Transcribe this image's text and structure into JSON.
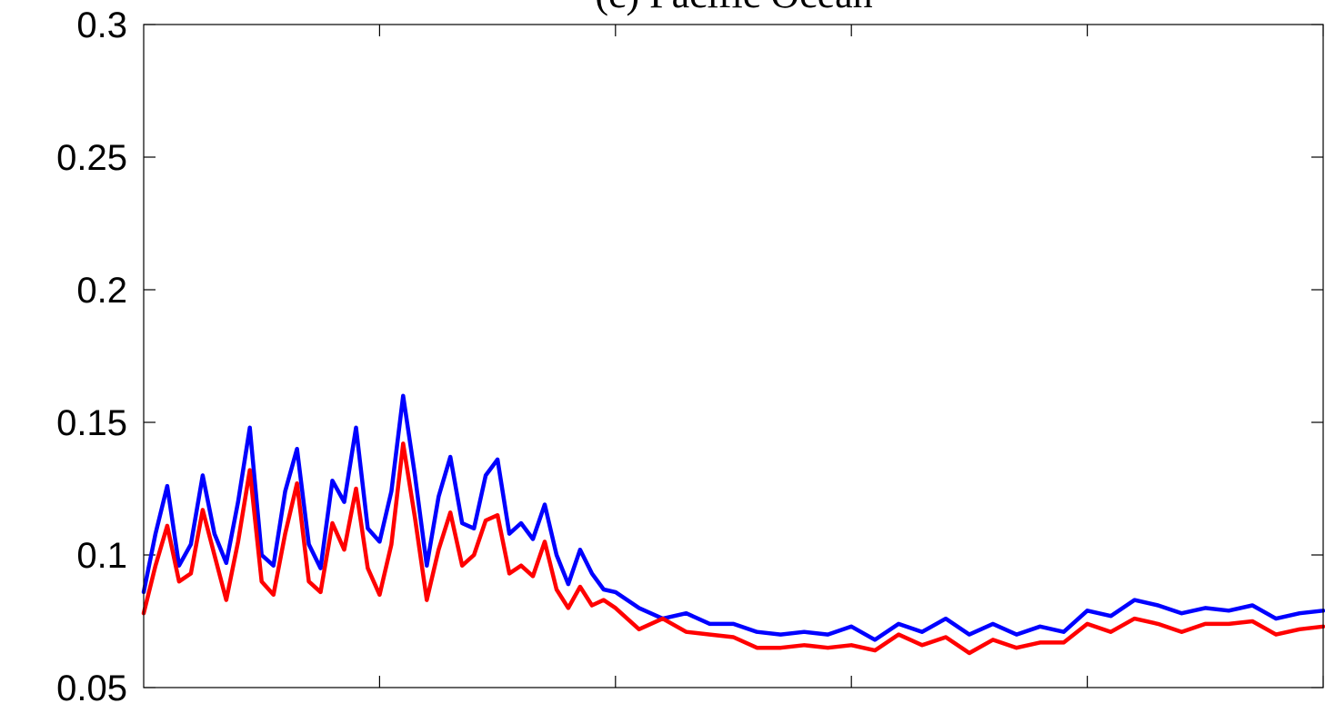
{
  "chart_data": {
    "type": "line",
    "title": "(c) Pacific Ocean",
    "xlabel": "",
    "ylabel": "",
    "xlim": [
      0,
      1
    ],
    "ylim": [
      0.05,
      0.3
    ],
    "yticks": [
      0.05,
      0.1,
      0.15,
      0.2,
      0.25,
      0.3
    ],
    "ytick_labels": [
      "0.05",
      "0.1",
      "0.15",
      "0.2",
      "0.25",
      "0.3"
    ],
    "xticks": [
      0.2,
      0.4,
      0.6,
      0.8,
      1.0
    ],
    "grid": false,
    "legend": "none",
    "series": [
      {
        "color": "#0000ff",
        "x": [
          0,
          0.01,
          0.02,
          0.03,
          0.04,
          0.05,
          0.06,
          0.07,
          0.08,
          0.09,
          0.1,
          0.11,
          0.12,
          0.13,
          0.14,
          0.15,
          0.16,
          0.17,
          0.18,
          0.19,
          0.2,
          0.21,
          0.22,
          0.23,
          0.24,
          0.25,
          0.26,
          0.27,
          0.28,
          0.29,
          0.3,
          0.31,
          0.32,
          0.33,
          0.34,
          0.35,
          0.36,
          0.37,
          0.38,
          0.39,
          0.4,
          0.42,
          0.44,
          0.46,
          0.48,
          0.5,
          0.52,
          0.54,
          0.56,
          0.58,
          0.6,
          0.62,
          0.64,
          0.66,
          0.68,
          0.7,
          0.72,
          0.74,
          0.76,
          0.78,
          0.8,
          0.82,
          0.84,
          0.86,
          0.88,
          0.9,
          0.92,
          0.94,
          0.96,
          0.98,
          1.0
        ],
        "y": [
          0.086,
          0.108,
          0.126,
          0.096,
          0.104,
          0.13,
          0.108,
          0.097,
          0.12,
          0.148,
          0.1,
          0.096,
          0.124,
          0.14,
          0.104,
          0.095,
          0.128,
          0.12,
          0.148,
          0.11,
          0.105,
          0.124,
          0.16,
          0.13,
          0.096,
          0.122,
          0.137,
          0.112,
          0.11,
          0.13,
          0.136,
          0.108,
          0.112,
          0.106,
          0.119,
          0.1,
          0.089,
          0.102,
          0.093,
          0.087,
          0.086,
          0.08,
          0.076,
          0.078,
          0.074,
          0.074,
          0.071,
          0.07,
          0.071,
          0.07,
          0.073,
          0.068,
          0.074,
          0.071,
          0.076,
          0.07,
          0.074,
          0.07,
          0.073,
          0.071,
          0.079,
          0.077,
          0.083,
          0.081,
          0.078,
          0.08,
          0.079,
          0.081,
          0.076,
          0.078,
          0.079
        ]
      },
      {
        "color": "#ff0000",
        "x": [
          0,
          0.01,
          0.02,
          0.03,
          0.04,
          0.05,
          0.06,
          0.07,
          0.08,
          0.09,
          0.1,
          0.11,
          0.12,
          0.13,
          0.14,
          0.15,
          0.16,
          0.17,
          0.18,
          0.19,
          0.2,
          0.21,
          0.22,
          0.23,
          0.24,
          0.25,
          0.26,
          0.27,
          0.28,
          0.29,
          0.3,
          0.31,
          0.32,
          0.33,
          0.34,
          0.35,
          0.36,
          0.37,
          0.38,
          0.39,
          0.4,
          0.42,
          0.44,
          0.46,
          0.48,
          0.5,
          0.52,
          0.54,
          0.56,
          0.58,
          0.6,
          0.62,
          0.64,
          0.66,
          0.68,
          0.7,
          0.72,
          0.74,
          0.76,
          0.78,
          0.8,
          0.82,
          0.84,
          0.86,
          0.88,
          0.9,
          0.92,
          0.94,
          0.96,
          0.98,
          1.0
        ],
        "y": [
          0.078,
          0.096,
          0.111,
          0.09,
          0.093,
          0.117,
          0.1,
          0.083,
          0.105,
          0.132,
          0.09,
          0.085,
          0.108,
          0.127,
          0.09,
          0.086,
          0.112,
          0.102,
          0.125,
          0.095,
          0.085,
          0.104,
          0.142,
          0.114,
          0.083,
          0.102,
          0.116,
          0.096,
          0.1,
          0.113,
          0.115,
          0.093,
          0.096,
          0.092,
          0.105,
          0.087,
          0.08,
          0.088,
          0.081,
          0.083,
          0.08,
          0.072,
          0.076,
          0.071,
          0.07,
          0.069,
          0.065,
          0.065,
          0.066,
          0.065,
          0.066,
          0.064,
          0.07,
          0.066,
          0.069,
          0.063,
          0.068,
          0.065,
          0.067,
          0.067,
          0.074,
          0.071,
          0.076,
          0.074,
          0.071,
          0.074,
          0.074,
          0.075,
          0.07,
          0.072,
          0.073
        ]
      }
    ]
  }
}
